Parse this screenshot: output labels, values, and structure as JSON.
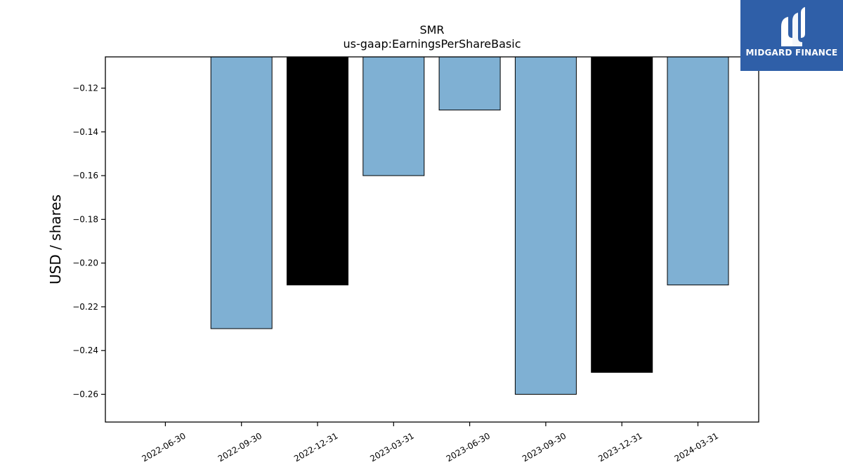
{
  "brand": {
    "name": "MIDGARD FINANCE",
    "icon": "midgard-m-logo-icon",
    "background_color": "#2f5fa8",
    "text_color": "#ffffff"
  },
  "chart_data": {
    "type": "bar",
    "title": "SMR",
    "subtitle": "us-gaap:EarningsPerShareBasic",
    "xlabel": "",
    "ylabel": "USD / shares",
    "categories": [
      "2022-06-30",
      "2022-09-30",
      "2022-12-31",
      "2023-03-31",
      "2023-06-30",
      "2023-09-30",
      "2023-12-31",
      "2024-03-31"
    ],
    "values": [
      null,
      -0.23,
      -0.21,
      -0.16,
      -0.13,
      -0.26,
      -0.25,
      -0.21
    ],
    "bar_colors": [
      null,
      "#7fb0d3",
      "#000000",
      "#7fb0d3",
      "#7fb0d3",
      "#7fb0d3",
      "#000000",
      "#7fb0d3"
    ],
    "yticks": [
      -0.12,
      -0.14,
      -0.16,
      -0.18,
      -0.2,
      -0.22,
      -0.24,
      -0.26
    ],
    "ytick_labels": [
      "−0.12",
      "−0.14",
      "−0.16",
      "−0.18",
      "−0.20",
      "−0.22",
      "−0.24",
      "−0.26"
    ],
    "ylim": [
      -0.2727,
      -0.1057
    ],
    "grid": false,
    "legend": "none"
  }
}
